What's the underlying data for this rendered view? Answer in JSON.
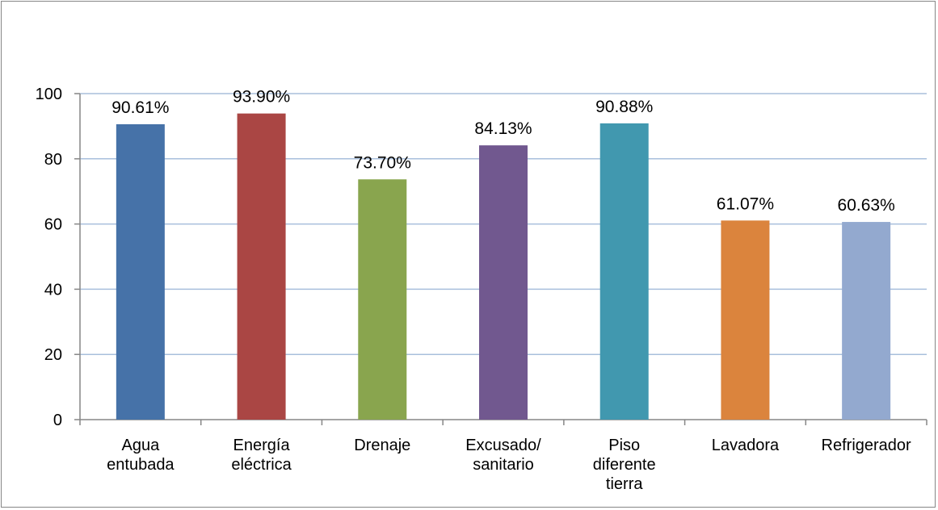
{
  "chart_data": {
    "type": "bar",
    "title": "",
    "xlabel": "",
    "ylabel": "",
    "ylim": [
      0,
      100
    ],
    "yticks": [
      0,
      20,
      40,
      60,
      80,
      100
    ],
    "grid": true,
    "legend": "none",
    "categories": [
      [
        "Agua",
        "entubada"
      ],
      [
        "Energía",
        "eléctrica"
      ],
      [
        "Drenaje"
      ],
      [
        "Excusado/",
        "sanitario"
      ],
      [
        "Piso",
        "diferente",
        "tierra"
      ],
      [
        "Lavadora"
      ],
      [
        "Refrigerador"
      ]
    ],
    "values": [
      90.61,
      93.9,
      73.7,
      84.13,
      90.88,
      61.07,
      60.63
    ],
    "data_labels": [
      "90.61%",
      "93.90%",
      "73.70%",
      "84.13%",
      "90.88%",
      "61.07%",
      "60.63%"
    ],
    "colors": [
      "#4672a8",
      "#aa4644",
      "#89a54e",
      "#71588f",
      "#4198af",
      "#db843d",
      "#93a9cf"
    ],
    "grid_color": "#a8bfdc",
    "axis_color": "#868686"
  }
}
